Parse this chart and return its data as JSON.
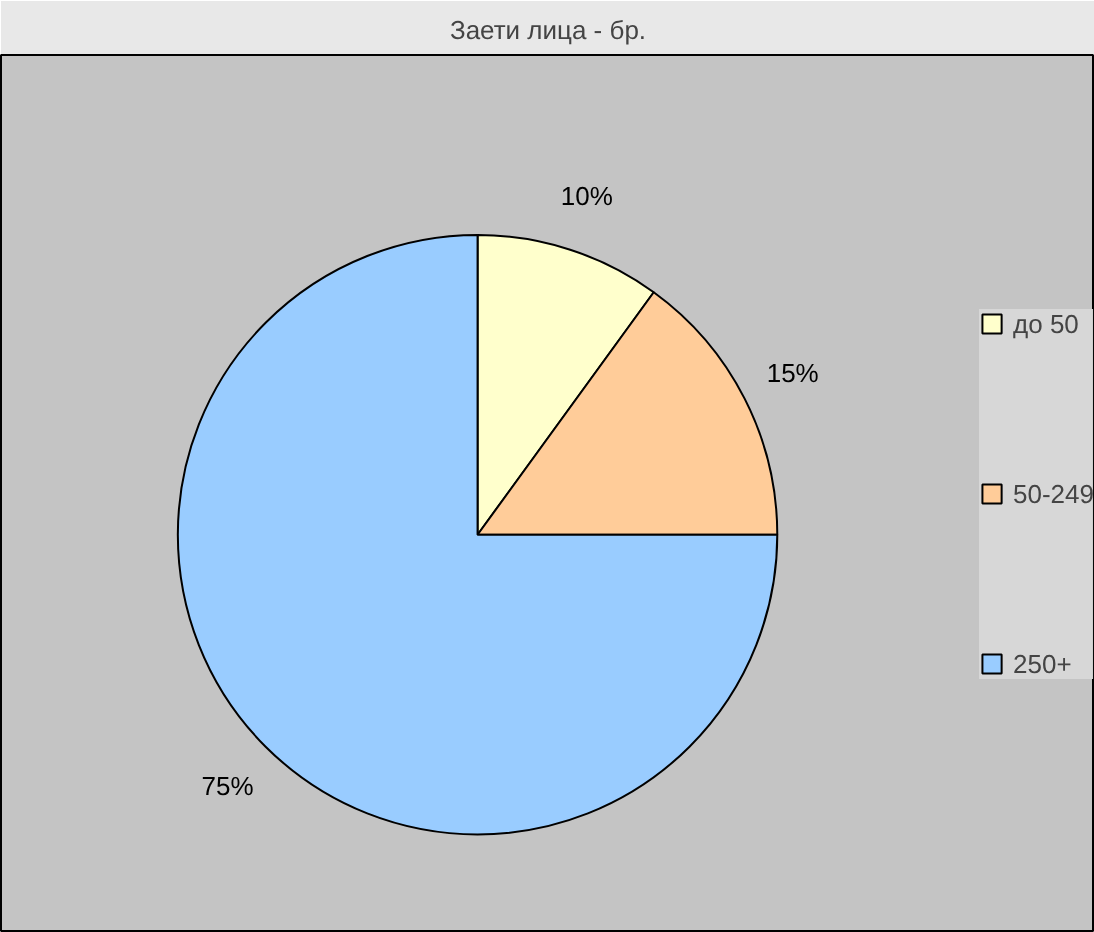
{
  "chart_data": {
    "type": "pie",
    "title": "Заети лица - бр.",
    "categories": [
      "до 50",
      "50-249",
      "250+"
    ],
    "values": [
      10,
      15,
      75
    ],
    "colors": [
      "#ffffcc",
      "#ffcc99",
      "#99ccff"
    ],
    "value_labels": [
      "10%",
      "15%",
      "75%"
    ],
    "legend": "right"
  }
}
